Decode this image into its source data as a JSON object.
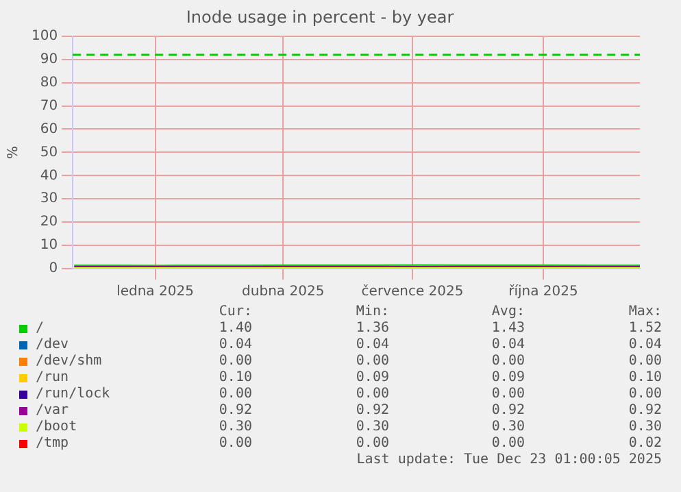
{
  "chart_data": {
    "type": "line",
    "title": "Inode usage in percent - by year",
    "ylabel": "%",
    "x": [
      "2024-11-20",
      "2024-12-20",
      "2025-01-20",
      "2025-02-20",
      "2025-03-20",
      "2025-04-20",
      "2025-05-20",
      "2025-06-20",
      "2025-07-20",
      "2025-08-20",
      "2025-09-20",
      "2025-10-20",
      "2025-11-20",
      "2025-12-23"
    ],
    "series": [
      {
        "name": "/",
        "color": "#00cc00",
        "values": [
          1.4,
          1.38,
          1.36,
          1.4,
          1.42,
          1.44,
          1.46,
          1.48,
          1.52,
          1.5,
          1.46,
          1.44,
          1.42,
          1.4
        ]
      },
      {
        "name": "/dev",
        "color": "#0066b3",
        "values": [
          null,
          null,
          null,
          null,
          null,
          null,
          null,
          null,
          null,
          null,
          null,
          null,
          null,
          null
        ]
      },
      {
        "name": "/dev/shm",
        "color": "#ff8000",
        "values": [
          null,
          null,
          null,
          null,
          null,
          null,
          null,
          null,
          null,
          null,
          null,
          null,
          null,
          null
        ]
      },
      {
        "name": "/run",
        "color": "#ffcc00",
        "values": [
          null,
          null,
          null,
          null,
          null,
          null,
          null,
          null,
          null,
          null,
          null,
          null,
          null,
          null
        ]
      },
      {
        "name": "/run/lock",
        "color": "#330099",
        "values": [
          null,
          null,
          null,
          null,
          null,
          null,
          null,
          null,
          null,
          null,
          null,
          null,
          null,
          null
        ]
      },
      {
        "name": "/var",
        "color": "#990099",
        "values": [
          0.92,
          0.92,
          0.92,
          0.92,
          0.92,
          0.92,
          0.92,
          0.92,
          0.92,
          0.92,
          0.92,
          0.92,
          0.92,
          0.92
        ]
      },
      {
        "name": "/boot",
        "color": "#ccff00",
        "values": [
          0.3,
          0.3,
          0.3,
          0.3,
          0.3,
          0.3,
          0.3,
          0.3,
          0.3,
          0.3,
          0.3,
          0.3,
          0.3,
          0.3
        ]
      },
      {
        "name": "/tmp",
        "color": "#ff0000",
        "values": [
          null,
          null,
          null,
          null,
          null,
          null,
          null,
          null,
          null,
          null,
          null,
          null,
          null,
          null
        ]
      }
    ],
    "xlim": [
      "2024-11-19",
      "2025-12-23"
    ],
    "xticks": [
      {
        "value": "2025-01-16",
        "label": "ledna 2025"
      },
      {
        "value": "2025-04-16",
        "label": "dubna 2025"
      },
      {
        "value": "2025-07-16",
        "label": "července 2025"
      },
      {
        "value": "2025-10-16",
        "label": "října 2025"
      }
    ],
    "ylim": [
      0,
      100
    ],
    "yticks": [
      0,
      10,
      20,
      30,
      40,
      50,
      60,
      70,
      80,
      90,
      100
    ],
    "grid": true,
    "legend": "bottom",
    "marker": "none",
    "line_style": "solid",
    "ref_lines": [
      {
        "axis": "y",
        "value": 92,
        "color": "#00cc00",
        "line_style": "dashed"
      }
    ],
    "annotations": [
      "Cur:",
      "Min:",
      "Avg:",
      "Max:",
      "1.40",
      "1.36",
      "1.43",
      "1.52",
      "0.04",
      "0.04",
      "0.04",
      "0.04",
      "0.00",
      "0.00",
      "0.00",
      "0.00",
      "0.10",
      "0.09",
      "0.09",
      "0.10",
      "0.00",
      "0.00",
      "0.00",
      "0.00",
      "0.92",
      "0.92",
      "0.92",
      "0.92",
      "0.30",
      "0.30",
      "0.30",
      "0.30",
      "0.00",
      "0.00",
      "0.00",
      "0.02",
      "Last update: Tue Dec 23 01:00:05 2025"
    ]
  }
}
